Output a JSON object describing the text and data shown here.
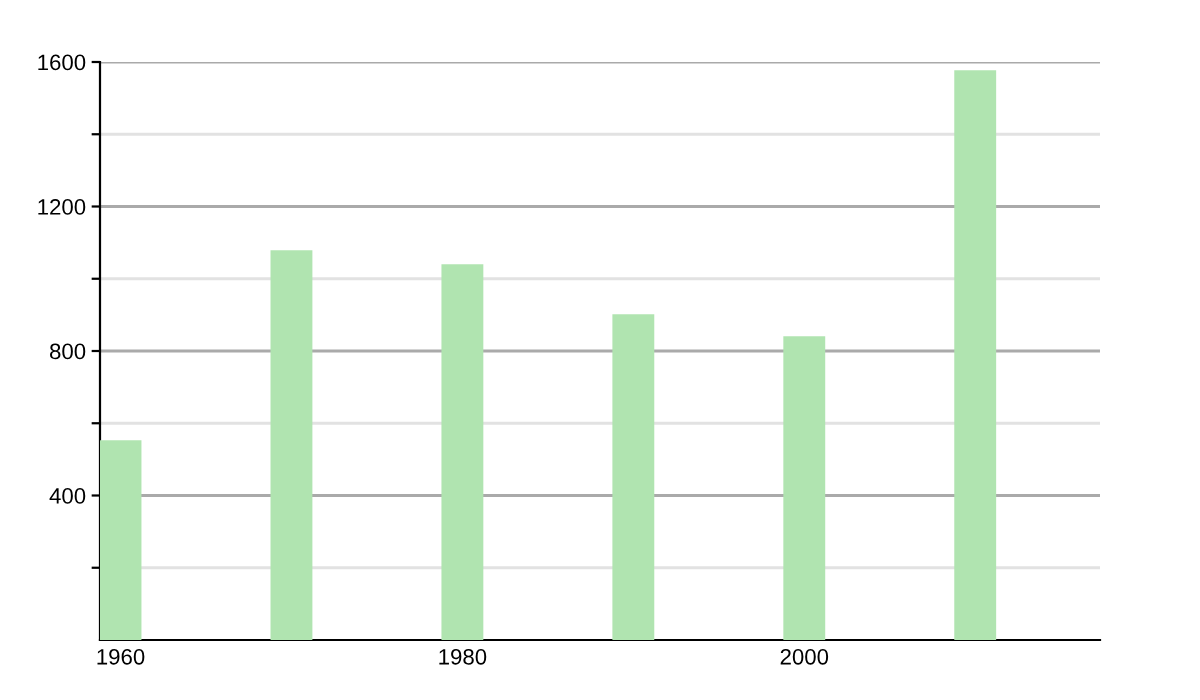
{
  "chart_data": {
    "type": "bar",
    "x": [
      1960,
      1970,
      1980,
      1990,
      2000,
      2010
    ],
    "values": [
      553,
      1079,
      1040,
      902,
      841,
      1577
    ],
    "color": "#b0e4b0",
    "xlim": [
      1958.8,
      2017.3
    ],
    "xticks": [
      1960,
      1980,
      2000
    ],
    "ylim": [
      0,
      1600
    ],
    "yticks": [
      {
        "value": 200,
        "label": null
      },
      400,
      {
        "value": 600,
        "label": null
      },
      800,
      {
        "value": 1000,
        "label": null
      },
      1200,
      {
        "value": 1400,
        "label": null
      },
      1600
    ],
    "grid": "y",
    "legend": false
  }
}
